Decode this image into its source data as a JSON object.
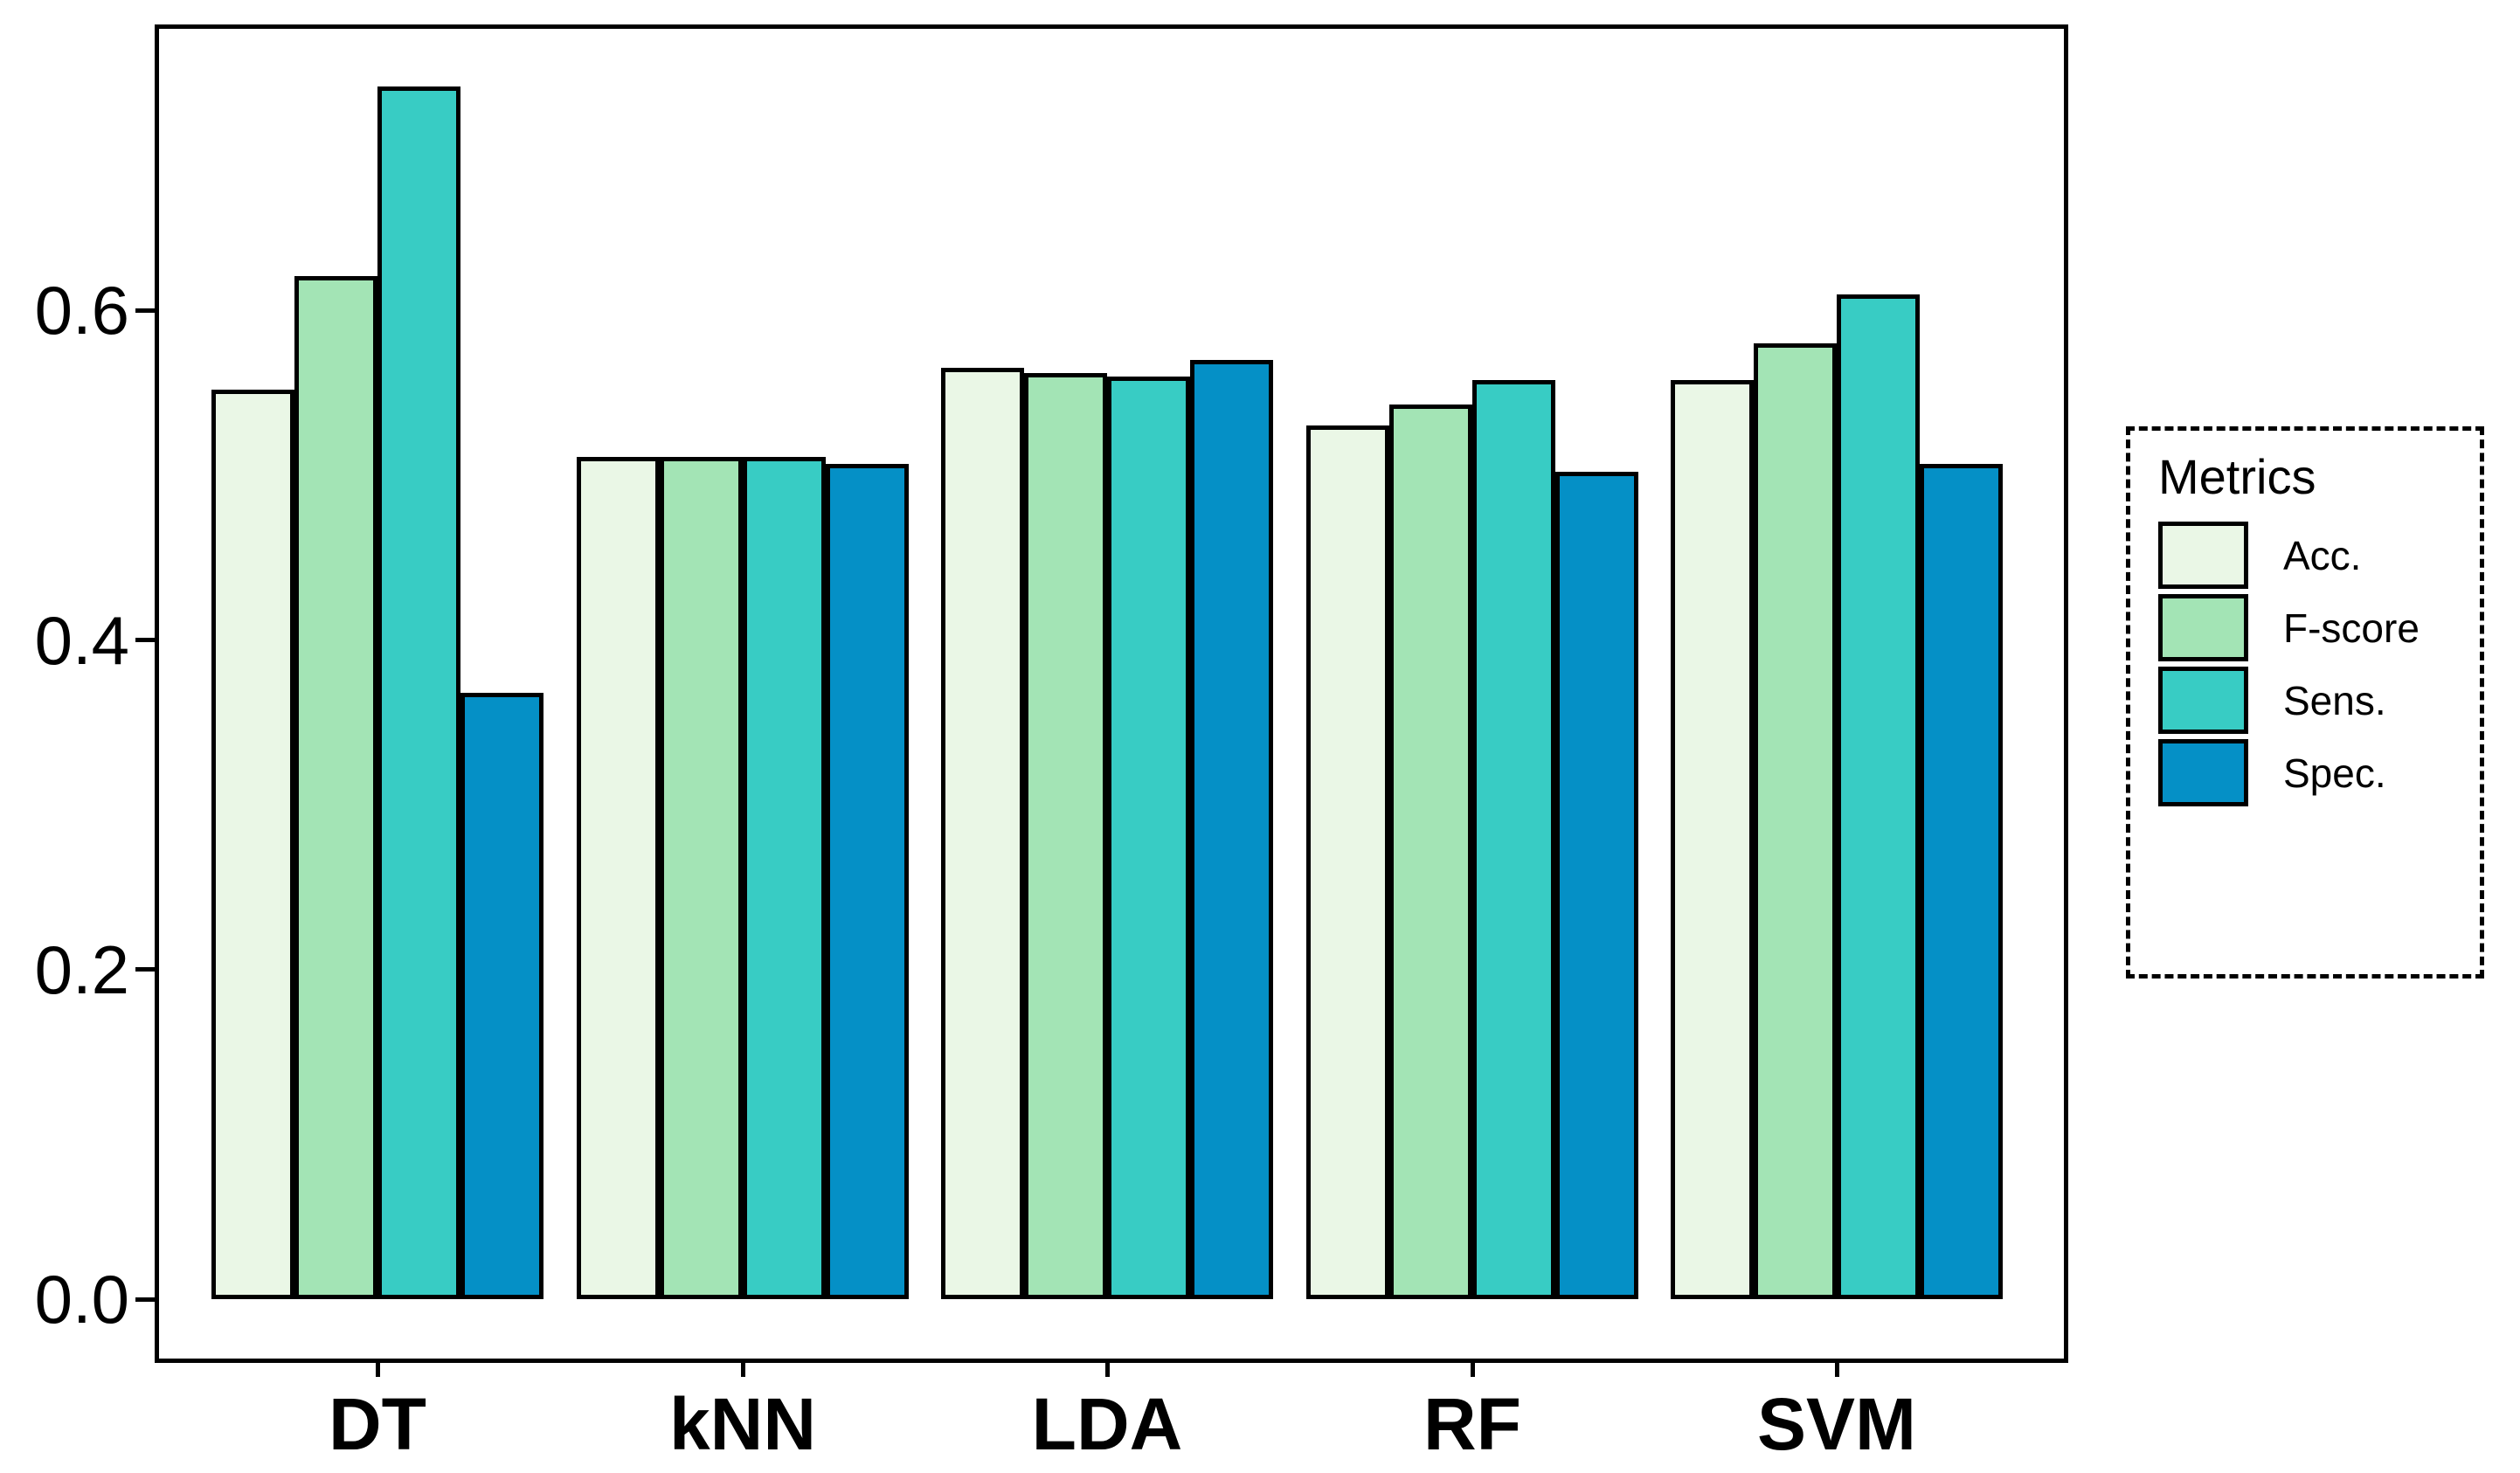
{
  "chart_data": {
    "type": "bar",
    "title": "",
    "xlabel": "",
    "ylabel": "",
    "categories": [
      "DT",
      "kNN",
      "LDA",
      "RF",
      "SVM"
    ],
    "series": [
      {
        "name": "Acc.",
        "color": "#eaf7e6",
        "values": [
          0.552,
          0.511,
          0.565,
          0.53,
          0.558
        ]
      },
      {
        "name": "F-score",
        "color": "#a3e4b5",
        "values": [
          0.621,
          0.511,
          0.562,
          0.543,
          0.58
        ]
      },
      {
        "name": "Sens.",
        "color": "#38ccc4",
        "values": [
          0.736,
          0.511,
          0.56,
          0.558,
          0.61
        ]
      },
      {
        "name": "Spec.",
        "color": "#0590c6",
        "values": [
          0.368,
          0.507,
          0.57,
          0.502,
          0.507
        ]
      }
    ],
    "yticks": [
      0.0,
      0.2,
      0.4,
      0.6
    ],
    "ytick_labels": [
      "0.0",
      "0.2",
      "0.4",
      "0.6"
    ],
    "ylim": [
      0,
      0.774
    ],
    "grid": false,
    "legend": {
      "title": "Metrics",
      "position": "right",
      "border_style": "dashed",
      "entries": [
        "Acc.",
        "F-score",
        "Sens.",
        "Spec."
      ]
    },
    "bar_outline_color": "#000000",
    "background_color": "#ffffff"
  }
}
